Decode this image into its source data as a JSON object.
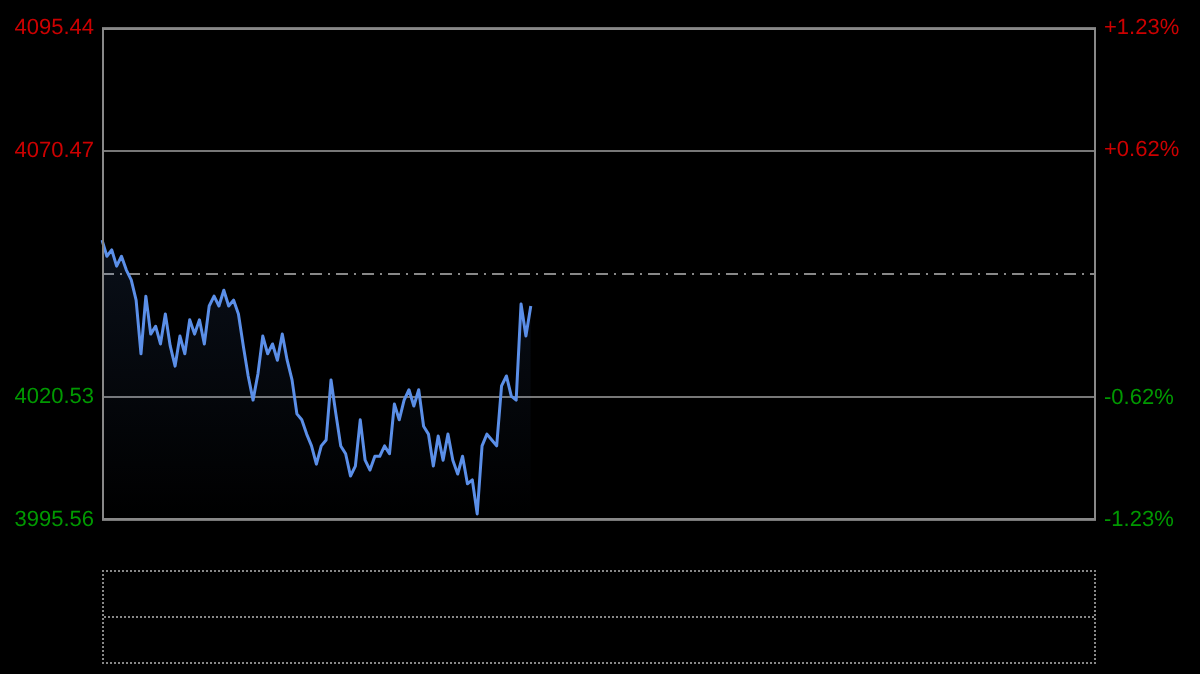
{
  "chart_data": {
    "type": "area",
    "categories": [
      null,
      null,
      null,
      null,
      null,
      null,
      null,
      null,
      null,
      null,
      null,
      null,
      null,
      null,
      null,
      null,
      null,
      null,
      null,
      null,
      null,
      null,
      null,
      null,
      null,
      null,
      null,
      null,
      null,
      null,
      null,
      null,
      null,
      null,
      null,
      null,
      null,
      null,
      null,
      null,
      null,
      null,
      null,
      null,
      null,
      null,
      null,
      null,
      null,
      null,
      null,
      null,
      null,
      null,
      null,
      null,
      null,
      null,
      null,
      null,
      null,
      null,
      null,
      null,
      null,
      null,
      null,
      null,
      null,
      null,
      null,
      null,
      null,
      null,
      null,
      null,
      null,
      null,
      null,
      null,
      null,
      null,
      null,
      null,
      null,
      null,
      null,
      null,
      null,
      null,
      null,
      null,
      null,
      null,
      null,
      null,
      null,
      null,
      null,
      null,
      null,
      null,
      null,
      null,
      null,
      null,
      null,
      null,
      null,
      null,
      null,
      null,
      null,
      null,
      null,
      null,
      null,
      null,
      null,
      null,
      null,
      null,
      null,
      null,
      null,
      null,
      null,
      null,
      null,
      null,
      null,
      null,
      null,
      null,
      null,
      null,
      null,
      null,
      null,
      null,
      null,
      null,
      null,
      null,
      null,
      null,
      null,
      null,
      null,
      null,
      null,
      null,
      null,
      null,
      null,
      null,
      null,
      null,
      null,
      null,
      null,
      null,
      null,
      null,
      null,
      null,
      null,
      null,
      null,
      null,
      null,
      null,
      null,
      null,
      null,
      null,
      null,
      null,
      null,
      null,
      null,
      null,
      null,
      null,
      null,
      null,
      null,
      null,
      null,
      null,
      null,
      null,
      null,
      null,
      null,
      null,
      null,
      null,
      null,
      null,
      null,
      null,
      null,
      null,
      null
    ],
    "series": [
      {
        "color": "#5b8fe8",
        "values": [
          4052.4,
          4049.1,
          4050.4,
          4047.1,
          4049.1,
          4046.3,
          4044.3,
          4040.2,
          4029.3,
          4041.0,
          4033.3,
          4034.9,
          4031.3,
          4037.4,
          4030.9,
          4026.8,
          4032.9,
          4029.3,
          4036.2,
          4033.3,
          4036.2,
          4031.3,
          4039.0,
          4041.0,
          4039.0,
          4042.2,
          4039.0,
          4040.2,
          4037.4,
          4030.9,
          4024.8,
          4019.9,
          4025.2,
          4032.9,
          4029.3,
          4031.3,
          4028.0,
          4033.3,
          4028.0,
          4024.0,
          4017.1,
          4015.9,
          4013.0,
          4010.6,
          4006.9,
          4010.6,
          4011.8,
          4024.0,
          4017.1,
          4010.6,
          4009.0,
          4004.5,
          4006.5,
          4015.9,
          4007.7,
          4005.7,
          4008.5,
          4008.5,
          4010.6,
          4009.0,
          4019.1,
          4015.9,
          4019.9,
          4022.0,
          4018.7,
          4022.0,
          4014.6,
          4013.0,
          4006.5,
          4012.6,
          4007.7,
          4013.0,
          4007.7,
          4004.9,
          4008.5,
          4002.9,
          4003.7,
          3996.8,
          4010.6,
          4013.0,
          4011.8,
          4010.6,
          4022.8,
          4024.8,
          4020.7,
          4019.9,
          4039.4,
          4032.9,
          4039.0,
          null,
          null,
          null,
          null,
          null,
          null,
          null,
          null,
          null,
          null,
          null,
          null,
          null,
          null,
          null,
          null,
          null,
          null,
          null,
          null,
          null,
          null,
          null,
          null,
          null,
          null,
          null,
          null,
          null,
          null,
          null,
          null,
          null,
          null,
          null,
          null,
          null,
          null,
          null,
          null,
          null,
          null,
          null,
          null,
          null,
          null,
          null,
          null,
          null,
          null,
          null,
          null,
          null,
          null,
          null,
          null,
          null,
          null,
          null,
          null,
          null,
          null,
          null,
          null,
          null,
          null,
          null,
          null,
          null,
          null,
          null,
          null,
          null,
          null,
          null,
          null,
          null,
          null,
          null,
          null,
          null,
          null,
          null,
          null,
          null,
          null,
          null,
          null,
          null,
          null,
          null,
          null,
          null,
          null,
          null,
          null,
          null,
          null,
          null,
          null,
          null,
          null,
          null,
          null,
          null,
          null,
          null,
          null,
          null,
          null,
          null,
          null,
          null,
          null,
          null,
          null
        ]
      }
    ],
    "ylim": [
      3995.56,
      4095.44
    ],
    "yticks": [
      3995.56,
      4020.53,
      4070.47,
      4095.44
    ],
    "y2lim": [
      -1.23,
      1.23
    ],
    "y2ticks": [
      {
        "value": -1.23,
        "label": "-1.23%"
      },
      {
        "value": -0.62,
        "label": "-0.62%"
      },
      {
        "value": 0.62,
        "label": "+0.62%"
      },
      {
        "value": 1.23,
        "label": "+1.23%"
      }
    ],
    "ref_lines": [
      {
        "axis": "y",
        "value": 4045.5,
        "color": "#888888",
        "line_style": "dashed"
      }
    ],
    "grid": "y",
    "tick_labels": "y",
    "marker": "none",
    "line_style": "solid"
  }
}
